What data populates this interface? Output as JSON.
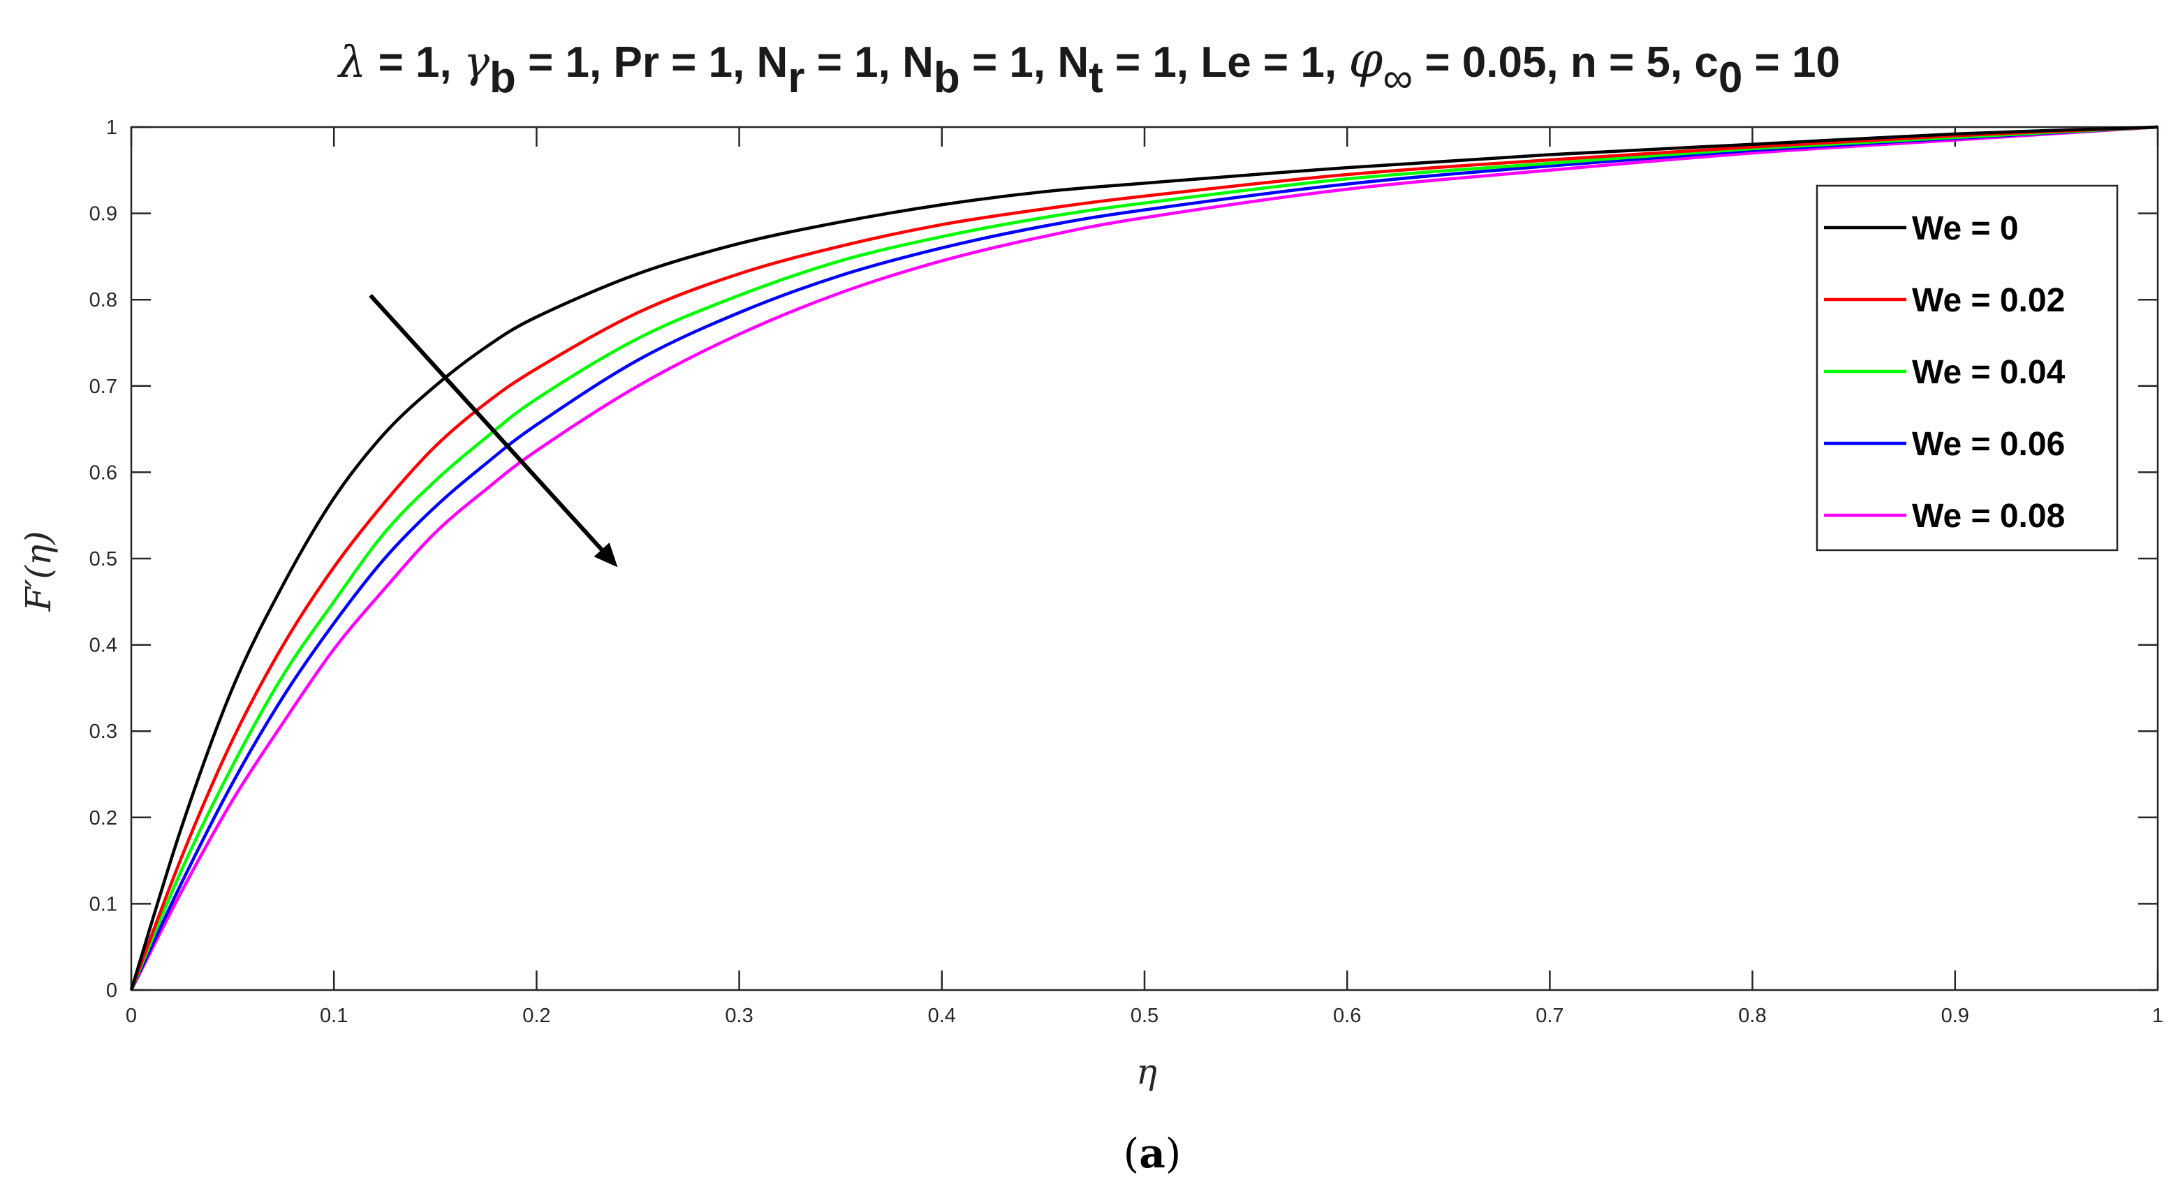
{
  "chart_data": {
    "type": "line",
    "title_parts": [
      {
        "sym": "λ",
        "val": " = 1,  "
      },
      {
        "sym": "γ",
        "sub": "b",
        "val": " = 1,  "
      },
      {
        "sym": "Pr",
        "val": " = 1,  "
      },
      {
        "sym": "N",
        "sub": "r",
        "val": " = 1,  "
      },
      {
        "sym": "N",
        "sub": "b",
        "val": " = 1,  "
      },
      {
        "sym": "N",
        "sub": "t",
        "val": " = 1,  "
      },
      {
        "sym": "Le",
        "val": " = 1,  "
      },
      {
        "sym": "φ",
        "sub": "∞",
        "val": " = 0.05,  "
      },
      {
        "sym": "n",
        "val": " = 5,  "
      },
      {
        "sym": "c",
        "sub": "0",
        "val": " = 10"
      }
    ],
    "xlabel": "η",
    "ylabel": "F′(η)",
    "xlim": [
      0,
      1
    ],
    "ylim": [
      0,
      1
    ],
    "xticks": [
      "0",
      "0.1",
      "0.2",
      "0.3",
      "0.4",
      "0.5",
      "0.6",
      "0.7",
      "0.8",
      "0.9",
      "1"
    ],
    "yticks": [
      "0",
      "0.1",
      "0.2",
      "0.3",
      "0.4",
      "0.5",
      "0.6",
      "0.7",
      "0.8",
      "0.9",
      "1"
    ],
    "grid": false,
    "legend_position": "top-right",
    "x": [
      0,
      0.025,
      0.05,
      0.075,
      0.1,
      0.125,
      0.15,
      0.175,
      0.2,
      0.25,
      0.3,
      0.35,
      0.4,
      0.45,
      0.5,
      0.6,
      0.7,
      0.8,
      0.9,
      1.0
    ],
    "series": [
      {
        "name": "We = 0",
        "color": "#000000",
        "values": [
          0,
          0.19,
          0.35,
          0.47,
          0.57,
          0.645,
          0.7,
          0.745,
          0.78,
          0.83,
          0.865,
          0.89,
          0.91,
          0.925,
          0.935,
          0.953,
          0.968,
          0.98,
          0.992,
          1.0
        ]
      },
      {
        "name": "We = 0.02",
        "color": "#ff0000",
        "values": [
          0,
          0.155,
          0.29,
          0.4,
          0.49,
          0.565,
          0.63,
          0.68,
          0.72,
          0.785,
          0.83,
          0.862,
          0.887,
          0.905,
          0.92,
          0.945,
          0.962,
          0.977,
          0.99,
          1.0
        ]
      },
      {
        "name": "We = 0.04",
        "color": "#00ff00",
        "values": [
          0,
          0.14,
          0.26,
          0.365,
          0.45,
          0.53,
          0.59,
          0.64,
          0.685,
          0.755,
          0.805,
          0.845,
          0.873,
          0.895,
          0.912,
          0.94,
          0.958,
          0.975,
          0.988,
          1.0
        ]
      },
      {
        "name": "We = 0.06",
        "color": "#0000ff",
        "values": [
          0,
          0.125,
          0.24,
          0.34,
          0.425,
          0.5,
          0.56,
          0.61,
          0.655,
          0.73,
          0.785,
          0.828,
          0.86,
          0.885,
          0.904,
          0.934,
          0.955,
          0.973,
          0.987,
          1.0
        ]
      },
      {
        "name": "We = 0.08",
        "color": "#ff00ff",
        "values": [
          0,
          0.115,
          0.22,
          0.31,
          0.395,
          0.465,
          0.53,
          0.58,
          0.625,
          0.7,
          0.76,
          0.808,
          0.845,
          0.873,
          0.895,
          0.928,
          0.95,
          0.97,
          0.985,
          1.0
        ]
      }
    ],
    "annotation_arrow": {
      "from": [
        0.118,
        0.805
      ],
      "to": [
        0.24,
        0.49
      ]
    }
  },
  "caption": {
    "open": "(",
    "letter": "a",
    "close": ")"
  }
}
